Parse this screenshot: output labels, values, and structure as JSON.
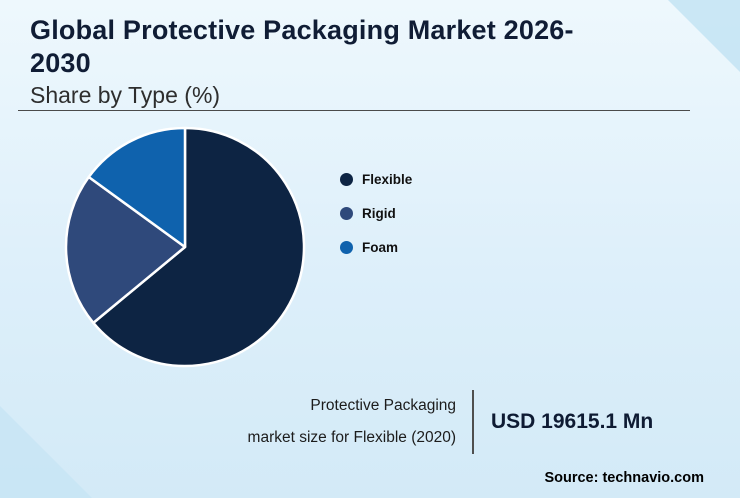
{
  "page": {
    "title": "Global Protective Packaging Market 2026-2030",
    "subtitle": "Share by Type (%)",
    "footnote_line1": "Protective Packaging",
    "footnote_line2": "market size for Flexible (2020)",
    "highlight_value": "USD 19615.1 Mn",
    "source": "Source: technavio.com"
  },
  "chart_data": {
    "type": "pie",
    "title": "Global Protective Packaging Market 2026-2030 — Share by Type (%)",
    "categories": [
      "Flexible",
      "Rigid",
      "Foam"
    ],
    "values": [
      64,
      21,
      15
    ],
    "colors": [
      "#0d2443",
      "#2f497b",
      "#0f62ad"
    ],
    "legend_position": "right",
    "start_angle_deg": 0,
    "direction": "clockwise",
    "slice_stroke": "#ffffff"
  }
}
